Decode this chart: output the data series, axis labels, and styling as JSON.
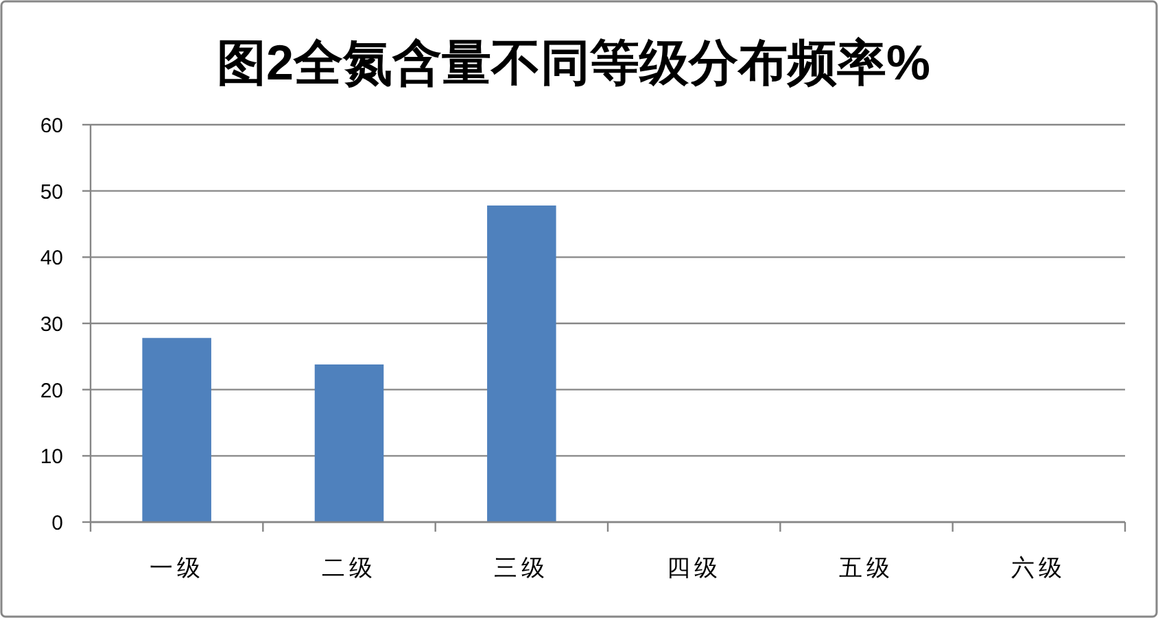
{
  "chart_data": {
    "type": "bar",
    "title": "图2全氮含量不同等级分布频率%",
    "categories": [
      "一级",
      "二级",
      "三级",
      "四级",
      "五级",
      "六级"
    ],
    "values": [
      27.8,
      23.8,
      47.8,
      0,
      0,
      0
    ],
    "color": "#4f81bd",
    "ylim": [
      0,
      60
    ],
    "yticks": [
      0,
      10,
      20,
      30,
      40,
      50,
      60
    ],
    "grid": "y"
  }
}
